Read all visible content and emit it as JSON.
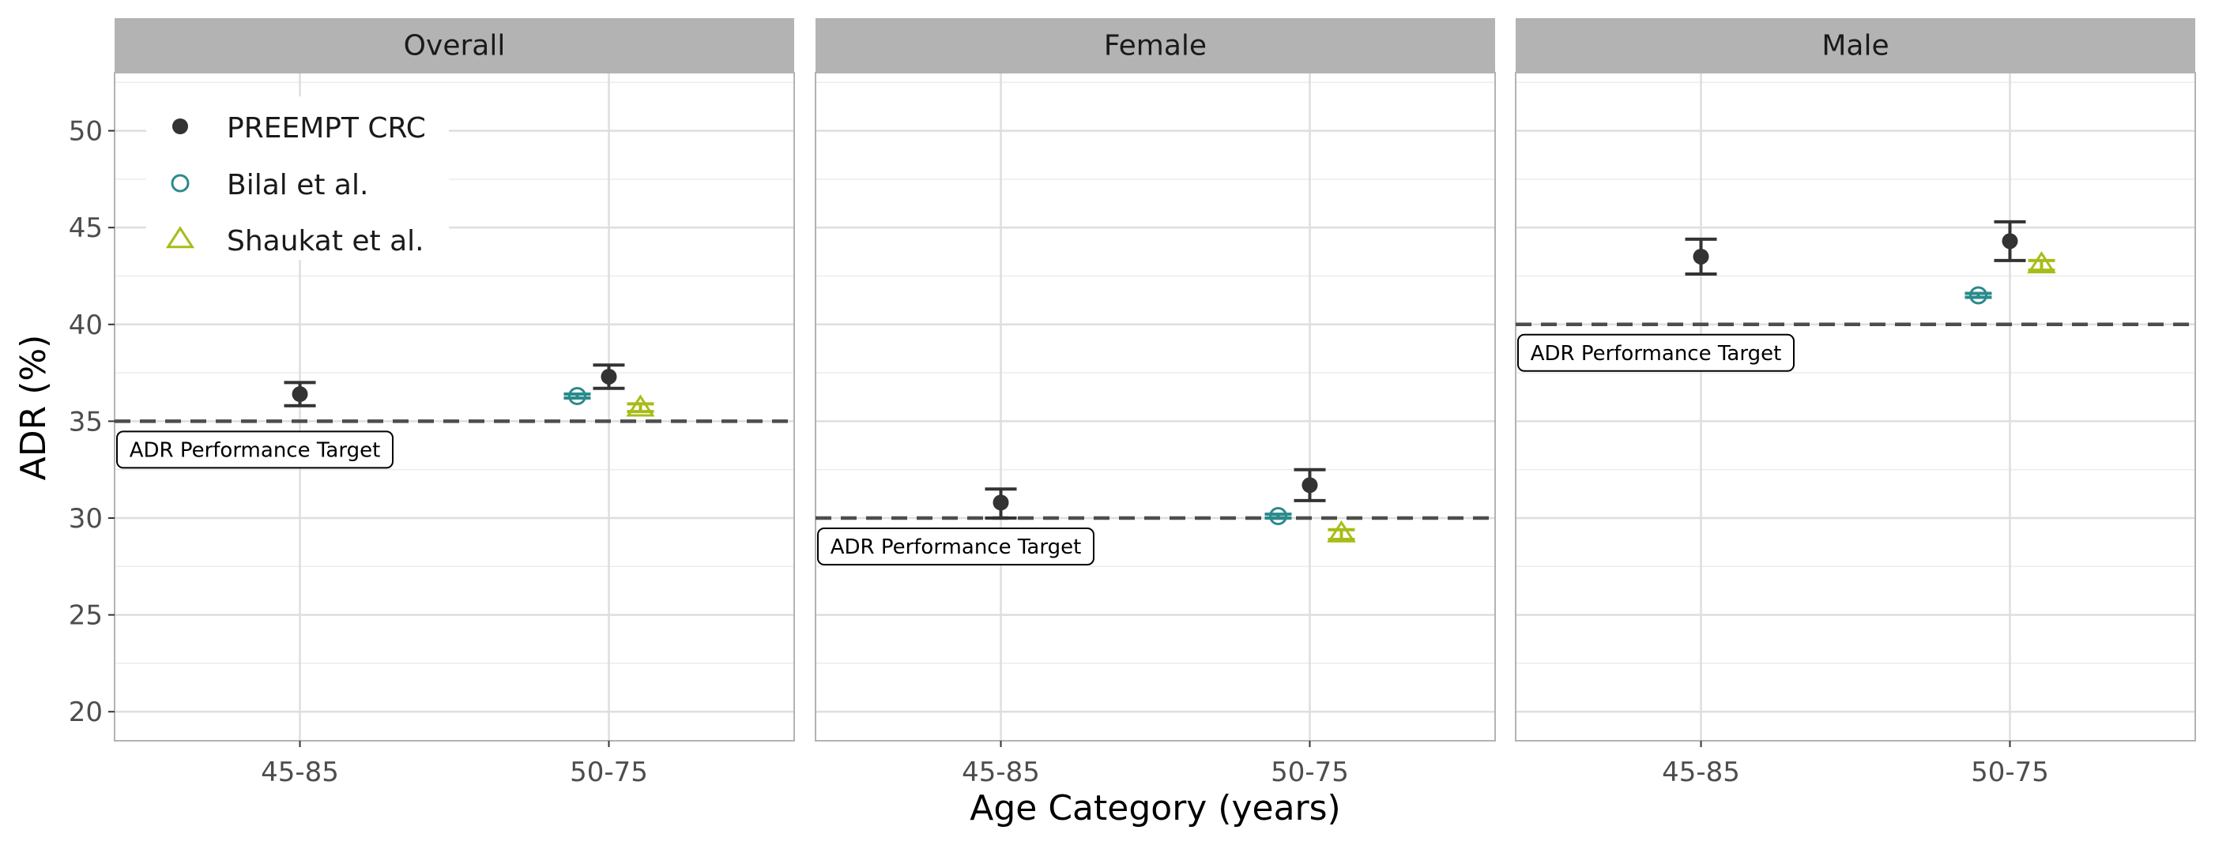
{
  "chart_data": {
    "type": "scatter",
    "subtype": "point-with-error-bars, faceted",
    "xlabel": "Age Category (years)",
    "ylabel": "ADR (%)",
    "ylim": [
      18.5,
      53
    ],
    "yticks": [
      20,
      25,
      30,
      35,
      40,
      45,
      50
    ],
    "categories": [
      "45-85",
      "50-75"
    ],
    "grid": true,
    "legend_position": "top-left (inside first panel)",
    "legend": [
      {
        "name": "PREEMPT CRC",
        "shape": "filled-circle",
        "color": "#333333"
      },
      {
        "name": "Bilal et al.",
        "shape": "open-circle",
        "color": "#2a8a8c"
      },
      {
        "name": "Shaukat et al.",
        "shape": "open-triangle",
        "color": "#a8bc18"
      }
    ],
    "panels": [
      {
        "title": "Overall",
        "target": 35,
        "target_label": "ADR Performance Target",
        "series": [
          {
            "name": "PREEMPT CRC",
            "points": [
              {
                "x": "45-85",
                "y": 36.4,
                "lo": 35.8,
                "hi": 37.0
              },
              {
                "x": "50-75",
                "y": 37.3,
                "lo": 36.7,
                "hi": 37.9
              }
            ]
          },
          {
            "name": "Bilal et al.",
            "points": [
              {
                "x": "50-75",
                "y": 36.3,
                "lo": 36.2,
                "hi": 36.4
              }
            ]
          },
          {
            "name": "Shaukat et al.",
            "points": [
              {
                "x": "50-75",
                "y": 35.7,
                "lo": 35.5,
                "hi": 35.9
              }
            ]
          }
        ]
      },
      {
        "title": "Female",
        "target": 30,
        "target_label": "ADR Performance Target",
        "series": [
          {
            "name": "PREEMPT CRC",
            "points": [
              {
                "x": "45-85",
                "y": 30.8,
                "lo": 30.0,
                "hi": 31.5
              },
              {
                "x": "50-75",
                "y": 31.7,
                "lo": 30.9,
                "hi": 32.5
              }
            ]
          },
          {
            "name": "Bilal et al.",
            "points": [
              {
                "x": "50-75",
                "y": 30.1,
                "lo": 30.0,
                "hi": 30.2
              }
            ]
          },
          {
            "name": "Shaukat et al.",
            "points": [
              {
                "x": "50-75",
                "y": 29.2,
                "lo": 28.9,
                "hi": 29.4
              }
            ]
          }
        ]
      },
      {
        "title": "Male",
        "target": 40,
        "target_label": "ADR Performance Target",
        "series": [
          {
            "name": "PREEMPT CRC",
            "points": [
              {
                "x": "45-85",
                "y": 43.5,
                "lo": 42.6,
                "hi": 44.4
              },
              {
                "x": "50-75",
                "y": 44.3,
                "lo": 43.3,
                "hi": 45.3
              }
            ]
          },
          {
            "name": "Bilal et al.",
            "points": [
              {
                "x": "50-75",
                "y": 41.5,
                "lo": 41.4,
                "hi": 41.6
              }
            ]
          },
          {
            "name": "Shaukat et al.",
            "points": [
              {
                "x": "50-75",
                "y": 43.1,
                "lo": 42.8,
                "hi": 43.3
              }
            ]
          }
        ]
      }
    ]
  }
}
